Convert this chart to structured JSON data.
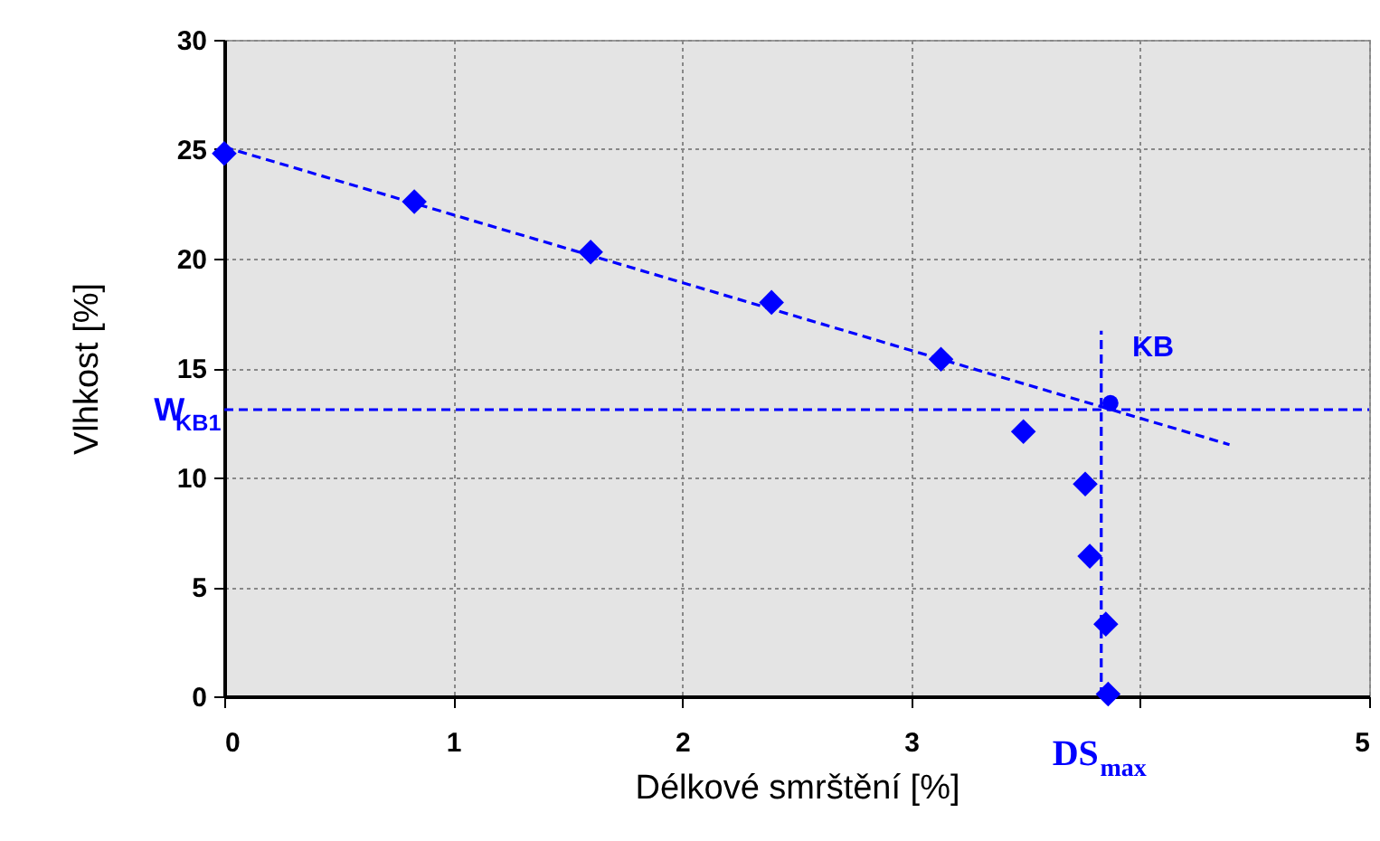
{
  "chart_data": {
    "type": "scatter",
    "xlabel": "Délkové smrštění [%]",
    "ylabel": "Vlhkost [%]",
    "xlim": [
      0,
      5
    ],
    "ylim": [
      0,
      30
    ],
    "xticks": [
      0,
      1,
      2,
      3,
      {
        "value": 4,
        "label": null
      },
      5
    ],
    "yticks": [
      0,
      5,
      10,
      15,
      20,
      25,
      30
    ],
    "grid": true,
    "series": [
      {
        "marker": "diamond",
        "color": "#0000ff",
        "x": [
          0,
          0.83,
          1.6,
          2.39,
          3.13,
          3.49,
          3.76,
          3.78,
          3.85,
          3.86
        ],
        "values": [
          24.8,
          22.6,
          20.3,
          18.0,
          15.4,
          12.1,
          9.7,
          6.4,
          3.3,
          0.1
        ]
      },
      {
        "type": "line",
        "line_style": "dashed",
        "color": "#0000ff",
        "x": [
          0,
          4.39
        ],
        "values": [
          25.1,
          11.5
        ]
      },
      {
        "type": "line",
        "line_style": "dashed",
        "color": "#0000ff",
        "x": [
          3.83,
          3.83
        ],
        "values": [
          0,
          16.7
        ]
      },
      {
        "type": "scatter",
        "marker": "circle",
        "color": "#0000ff",
        "x": [
          3.87
        ],
        "values": [
          13.4
        ]
      }
    ],
    "ref_lines": [
      {
        "axis": "y",
        "value": 13.1,
        "label": "W$_{KB1}$",
        "color": "#0000ff",
        "line_style": "dashed"
      }
    ],
    "annotations": [
      {
        "text": "KB",
        "x": 3.87,
        "y": 13.4
      },
      {
        "text": "DS$_{max}$",
        "x": 3.83,
        "y": 0
      }
    ]
  }
}
